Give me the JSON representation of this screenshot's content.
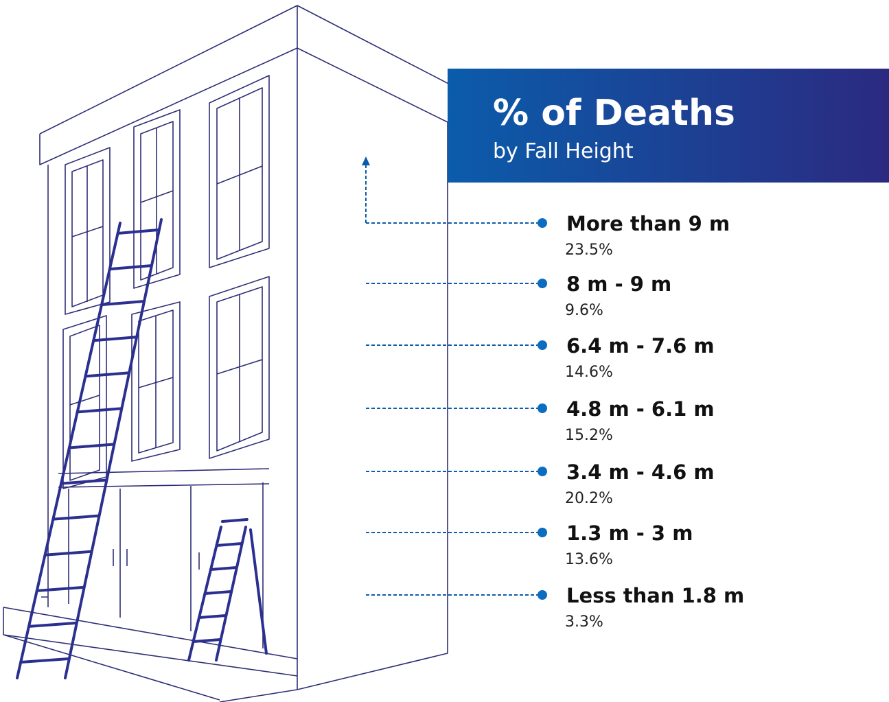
{
  "header": {
    "title": "% of Deaths",
    "subtitle": "by Fall Height"
  },
  "items": [
    {
      "label": "More than 9 m",
      "value": "23.5%"
    },
    {
      "label": "8 m - 9 m",
      "value": "9.6%"
    },
    {
      "label": "6.4 m - 7.6 m",
      "value": "14.6%"
    },
    {
      "label": "4.8 m - 6.1 m",
      "value": "15.2%"
    },
    {
      "label": "3.4 m - 4.6 m",
      "value": "20.2%"
    },
    {
      "label": "1.3 m - 3 m",
      "value": "13.6%"
    },
    {
      "label": "Less than 1.8 m",
      "value": "3.3%"
    }
  ]
}
